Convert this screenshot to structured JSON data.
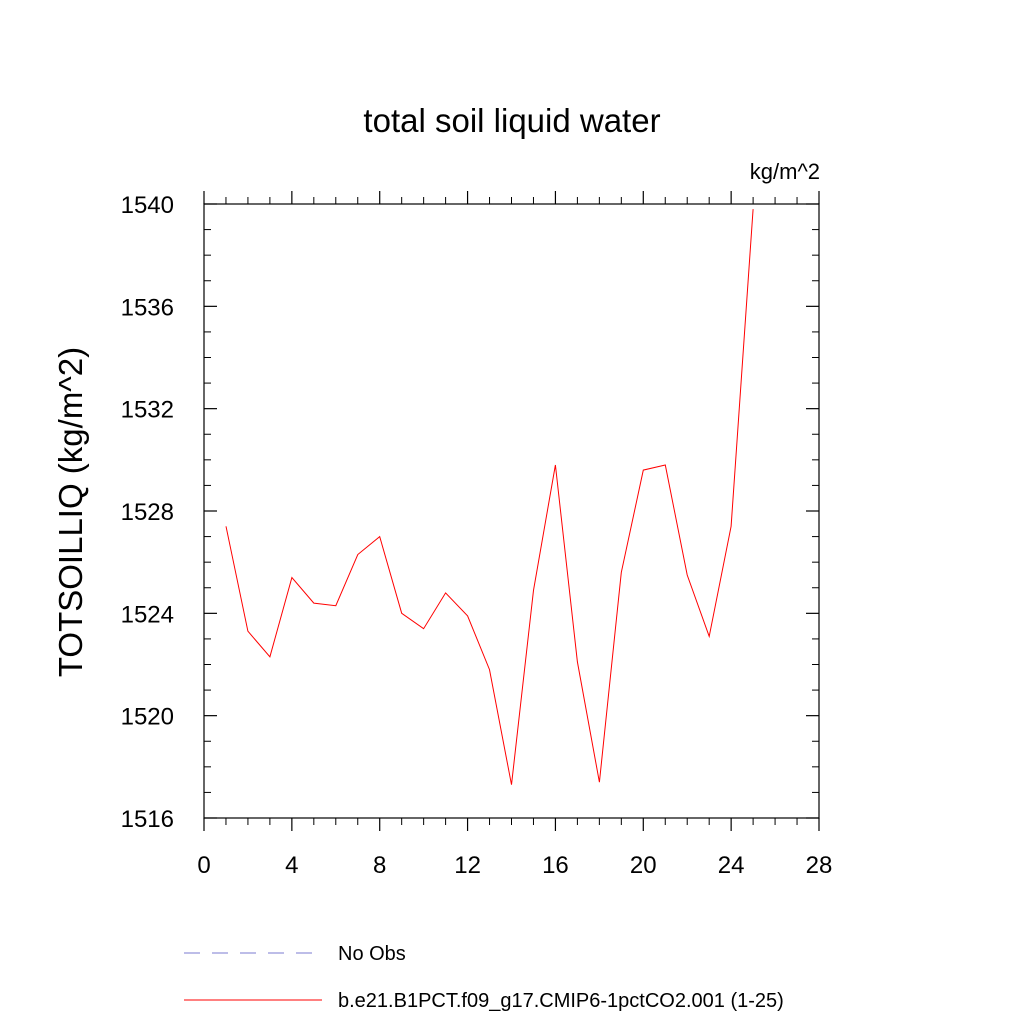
{
  "chart_data": {
    "type": "line",
    "title": "total soil liquid water",
    "units_label": "kg/m^2",
    "ylabel": "TOTSOILLIQ  (kg/m^2)",
    "xlabel": "",
    "xlim": [
      0,
      28
    ],
    "ylim": [
      1516,
      1540
    ],
    "x_ticks": [
      0,
      4,
      8,
      12,
      16,
      20,
      24,
      28
    ],
    "x_tick_labels": [
      "0",
      "4",
      "8",
      "12",
      "16",
      "20",
      "24",
      "28"
    ],
    "y_ticks": [
      1516,
      1520,
      1524,
      1528,
      1532,
      1536,
      1540
    ],
    "y_tick_labels": [
      "1516",
      "1520",
      "1524",
      "1528",
      "1532",
      "1536",
      "1540"
    ],
    "grid": false,
    "legend_position": "bottom",
    "series": [
      {
        "name": "b.e21.B1PCT.f09_g17.CMIP6-1pctCO2.001 (1-25)",
        "color": "#ff0000",
        "line_style": "solid",
        "x": [
          1,
          2,
          3,
          4,
          5,
          6,
          7,
          8,
          9,
          10,
          11,
          12,
          13,
          14,
          15,
          16,
          17,
          18,
          19,
          20,
          21,
          22,
          23,
          24,
          25
        ],
        "y": [
          1527.4,
          1523.3,
          1522.3,
          1525.4,
          1524.4,
          1524.3,
          1526.3,
          1527.0,
          1524.0,
          1523.4,
          1524.8,
          1523.9,
          1521.8,
          1517.3,
          1524.9,
          1529.8,
          1522.1,
          1517.4,
          1525.6,
          1529.6,
          1529.8,
          1525.5,
          1523.1,
          1527.4,
          1539.8
        ]
      }
    ],
    "legend": [
      {
        "label": "No Obs",
        "color": "#7b7bd0",
        "line_style": "dashed"
      },
      {
        "label": "b.e21.B1PCT.f09_g17.CMIP6-1pctCO2.001 (1-25)",
        "color": "#ff0000",
        "line_style": "solid"
      }
    ]
  }
}
